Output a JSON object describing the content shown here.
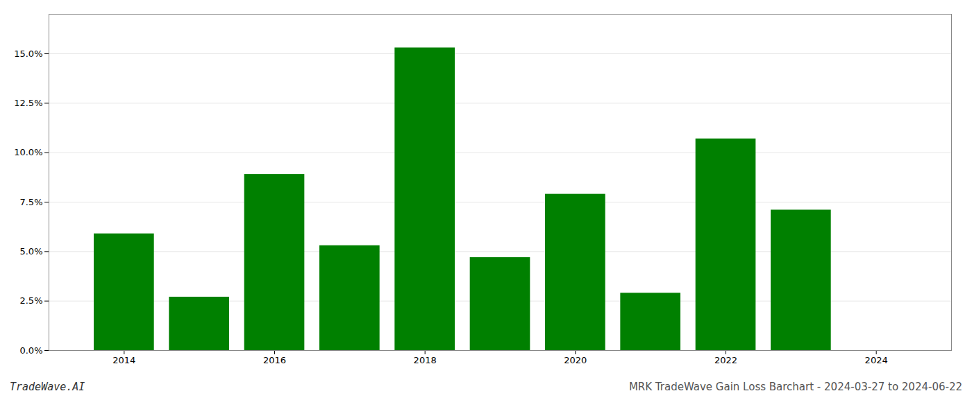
{
  "chart_data": {
    "type": "bar",
    "title": "MRK TradeWave Gain Loss Barchart - 2024-03-27 to 2024-06-22",
    "annotations": [
      "TradeWave.AI"
    ],
    "x": [
      2014,
      2015,
      2016,
      2017,
      2018,
      2019,
      2020,
      2021,
      2022,
      2023
    ],
    "values": [
      0.059,
      0.027,
      0.089,
      0.053,
      0.153,
      0.047,
      0.079,
      0.029,
      0.107,
      0.071
    ],
    "color": "#008000",
    "xlim": [
      2013.0,
      2025.0
    ],
    "xticks": [
      2014,
      2016,
      2018,
      2020,
      2022,
      2024
    ],
    "ylim": [
      0,
      0.17
    ],
    "yticks": [
      {
        "value": 0.0,
        "label": "0.0%"
      },
      {
        "value": 0.025,
        "label": "2.5%"
      },
      {
        "value": 0.05,
        "label": "5.0%"
      },
      {
        "value": 0.075,
        "label": "7.5%"
      },
      {
        "value": 0.1,
        "label": "10.0%"
      },
      {
        "value": 0.125,
        "label": "12.5%"
      },
      {
        "value": 0.15,
        "label": "15.0%"
      }
    ],
    "grid": true
  }
}
